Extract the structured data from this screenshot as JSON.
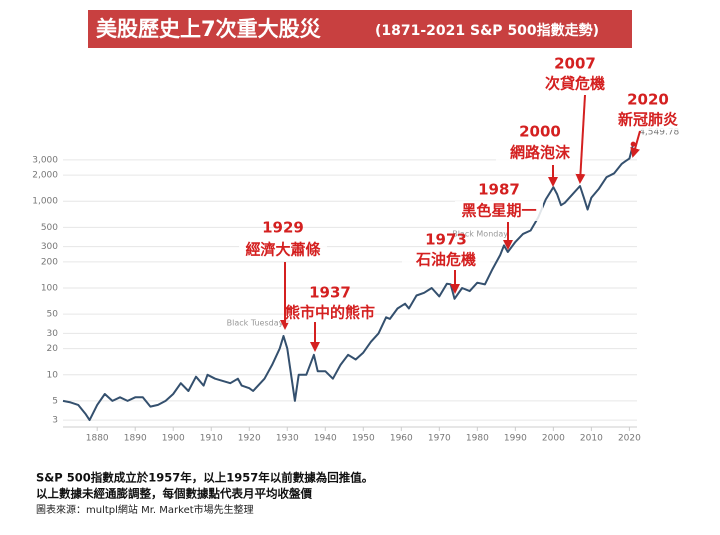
{
  "chart_data": {
    "type": "line",
    "title": "美股歷史上7次重大股災",
    "subtitle": "(1871-2021 S&P 500指數走勢)",
    "x": [
      1871,
      1873,
      1875,
      1877,
      1878,
      1880,
      1882,
      1884,
      1886,
      1888,
      1890,
      1892,
      1894,
      1896,
      1898,
      1900,
      1902,
      1904,
      1906,
      1908,
      1909,
      1911,
      1913,
      1915,
      1917,
      1918,
      1920,
      1921,
      1924,
      1926,
      1928,
      1929,
      1930,
      1931,
      1932,
      1933,
      1935,
      1937,
      1938,
      1940,
      1942,
      1944,
      1946,
      1948,
      1950,
      1952,
      1954,
      1956,
      1957,
      1959,
      1961,
      1962,
      1964,
      1966,
      1968,
      1970,
      1972,
      1973,
      1974,
      1976,
      1978,
      1980,
      1982,
      1984,
      1986,
      1987,
      1988,
      1990,
      1992,
      1994,
      1996,
      1998,
      2000,
      2001,
      2002,
      2003,
      2005,
      2007,
      2008,
      2009,
      2010,
      2012,
      2014,
      2016,
      2018,
      2019,
      2020,
      2021
    ],
    "values": [
      5,
      4.8,
      4.5,
      3.5,
      3.0,
      4.5,
      6,
      5,
      5.5,
      5,
      5.5,
      5.5,
      4.3,
      4.5,
      5,
      6,
      8,
      6.5,
      9.5,
      7.5,
      10,
      9,
      8.5,
      8,
      9,
      7.5,
      7,
      6.5,
      9,
      13,
      20,
      28,
      20,
      10,
      5,
      10,
      10,
      17,
      11,
      11,
      9,
      13,
      17,
      15,
      18,
      24,
      30,
      46,
      44,
      58,
      66,
      58,
      82,
      88,
      100,
      80,
      112,
      110,
      75,
      100,
      92,
      115,
      110,
      165,
      240,
      310,
      260,
      340,
      420,
      460,
      650,
      1050,
      1450,
      1200,
      900,
      960,
      1200,
      1500,
      1100,
      800,
      1100,
      1400,
      1900,
      2100,
      2700,
      2900,
      3100,
      4549.78
    ],
    "value_labels": [
      null,
      null,
      null,
      null,
      null,
      null,
      null,
      null,
      null,
      null,
      null,
      null,
      null,
      null,
      null,
      null,
      null,
      null,
      null,
      null,
      null,
      null,
      null,
      null,
      null,
      null,
      null,
      null,
      null,
      null,
      null,
      null,
      null,
      null,
      null,
      null,
      null,
      null,
      null,
      null,
      null,
      null,
      null,
      null,
      null,
      null,
      null,
      null,
      null,
      null,
      null,
      null,
      null,
      null,
      null,
      null,
      null,
      null,
      null,
      null,
      null,
      null,
      null,
      null,
      null,
      null,
      null,
      null,
      null,
      null,
      null,
      null,
      null,
      null,
      null,
      null,
      null,
      null,
      null,
      null,
      null,
      null,
      null,
      null,
      null,
      null,
      null,
      "4,549.78"
    ],
    "color": "#34506e",
    "log_y": true,
    "grid": true,
    "xlim": [
      1871,
      2022
    ],
    "xticks": [
      1880,
      1890,
      1900,
      1910,
      1920,
      1930,
      1940,
      1950,
      1960,
      1970,
      1980,
      1990,
      2000,
      2010,
      2020
    ],
    "ylim": [
      2.5,
      4000
    ],
    "yticks": [
      3,
      5,
      10,
      20,
      30,
      50,
      100,
      200,
      300,
      500,
      {
        "value": 1000,
        "label": "1,000"
      },
      {
        "value": 2000,
        "label": "2,000"
      },
      {
        "value": 3000,
        "label": "3,000"
      }
    ],
    "annotations": [
      {
        "year": 1929,
        "label": "經濟大蕭條"
      },
      {
        "year": 1937,
        "label": "熊市中的熊市"
      },
      {
        "year": 1973,
        "label": "石油危機"
      },
      {
        "year": 1987,
        "label": "黑色星期一"
      },
      {
        "year": 2000,
        "label": "網路泡沫"
      },
      {
        "year": 2007,
        "label": "次貸危機"
      },
      {
        "year": 2020,
        "label": "新冠肺炎"
      }
    ],
    "event_notes": [
      "Black Tuesday",
      "Black Monday"
    ],
    "footnotes": [
      "S&P 500指數成立於1957年，以上1957年以前數據為回推值。",
      "以上數據未經通膨調整，每個數據點代表月平均收盤價",
      "圖表來源：multpl網站  Mr. Market市場先生整理"
    ]
  }
}
